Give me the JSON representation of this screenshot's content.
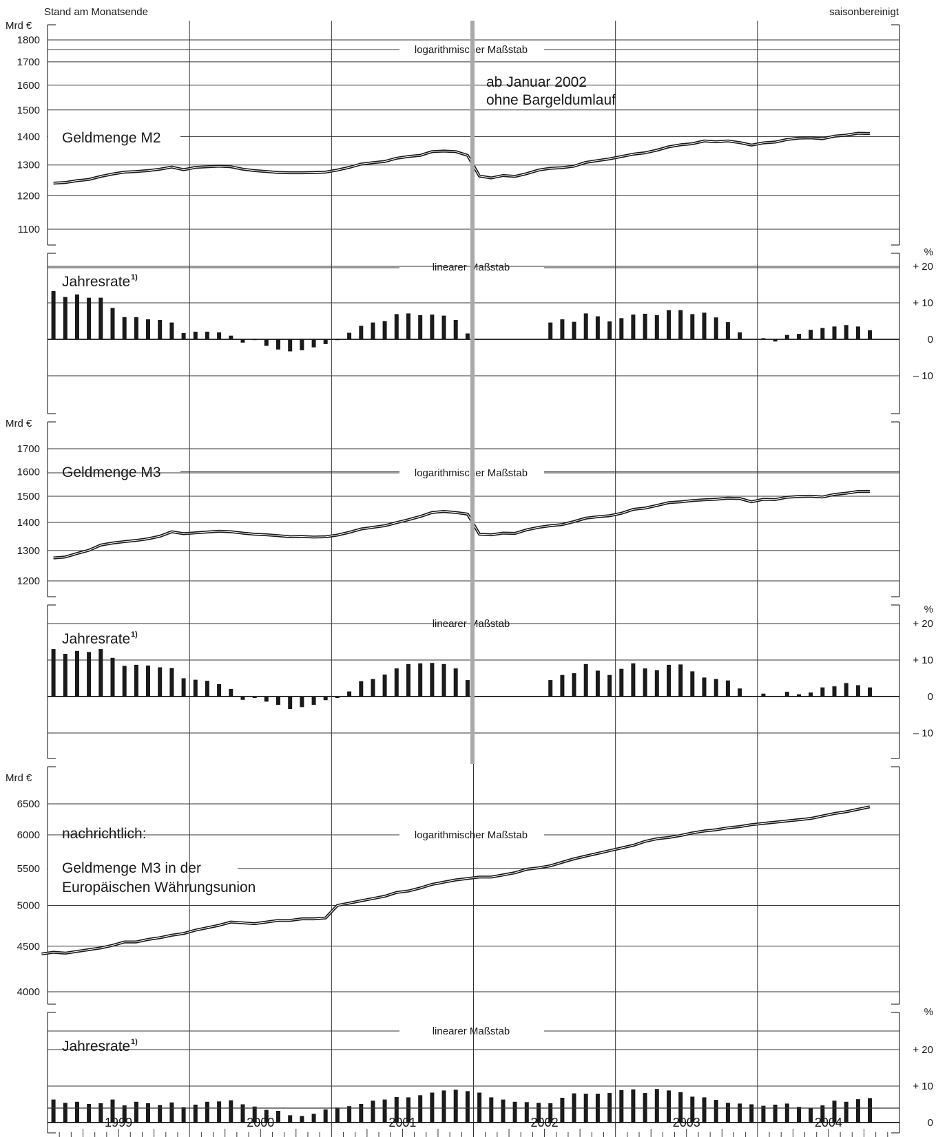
{
  "header": {
    "left": "Stand am Monatsende",
    "right": "saisonbereinigt"
  },
  "note": {
    "line1": "ab Januar 2002",
    "line2": "ohne Bargeldumlauf"
  },
  "years": [
    "1999",
    "2000",
    "2001",
    "2002",
    "2003",
    "2004"
  ],
  "chart_data": [
    {
      "type": "line",
      "title": "Geldmenge M2",
      "unit": "Mrd €",
      "scale_label": "logarithmischer Maßstab",
      "y_scale": "log",
      "ylim": [
        1050,
        1900
      ],
      "y_ticks": [
        1100,
        1200,
        1300,
        1400,
        1500,
        1600,
        1700,
        1800
      ],
      "x": "monthly, Jan 1999 – Nov 2004",
      "values": [
        1240,
        1242,
        1248,
        1252,
        1262,
        1270,
        1276,
        1278,
        1281,
        1286,
        1293,
        1284,
        1292,
        1294,
        1296,
        1294,
        1286,
        1281,
        1278,
        1275,
        1274,
        1274,
        1275,
        1276,
        1283,
        1292,
        1303,
        1308,
        1312,
        1323,
        1329,
        1333,
        1346,
        1348,
        1346,
        1333,
        1263,
        1257,
        1265,
        1262,
        1271,
        1283,
        1289,
        1291,
        1296,
        1309,
        1315,
        1321,
        1329,
        1337,
        1342,
        1351,
        1363,
        1370,
        1374,
        1384,
        1381,
        1384,
        1378,
        1369,
        1377,
        1380,
        1389,
        1394,
        1395,
        1392,
        1401,
        1405,
        1412,
        1411
      ]
    },
    {
      "type": "bar",
      "title": "Jahresrate",
      "footnote": "1)",
      "unit": "%",
      "scale_label": "linearer Maßstab",
      "ylim": [
        -20,
        24
      ],
      "y_ticks": [
        -10,
        0,
        10,
        20
      ],
      "y_tick_labels": [
        "– 10",
        "0",
        "+ 10",
        "+ 20"
      ],
      "x": "monthly, Jan 1999 – Nov 2004",
      "values": [
        13.2,
        11.6,
        12.3,
        11.4,
        11.4,
        8.6,
        6.1,
        6.1,
        5.5,
        5.3,
        4.6,
        1.7,
        2.1,
        2.1,
        1.9,
        1.0,
        -0.9,
        0.0,
        -1.8,
        -2.8,
        -3.3,
        -3.0,
        -2.2,
        -1.3,
        0.0,
        1.8,
        3.7,
        4.6,
        5.0,
        6.9,
        7.1,
        6.6,
        6.8,
        6.5,
        5.3,
        1.6,
        null,
        null,
        null,
        null,
        null,
        null,
        4.6,
        5.5,
        4.8,
        7.1,
        6.3,
        4.9,
        5.8,
        6.8,
        7.0,
        6.6,
        8.0,
        8.0,
        6.9,
        7.3,
        6.0,
        4.7,
        1.9,
        null,
        0.3,
        -0.6,
        1.2,
        1.5,
        2.6,
        3.1,
        3.5,
        3.9,
        3.5,
        2.5
      ]
    },
    {
      "type": "line",
      "title": "Geldmenge M3",
      "unit": "Mrd €",
      "scale_label": "logarithmischer Maßstab",
      "y_scale": "log",
      "ylim": [
        1160,
        1820
      ],
      "y_ticks": [
        1200,
        1300,
        1400,
        1500,
        1600,
        1700
      ],
      "x": "monthly, Jan 1999 – Nov 2004",
      "values": [
        1275,
        1278,
        1290,
        1301,
        1319,
        1326,
        1331,
        1335,
        1341,
        1350,
        1366,
        1359,
        1362,
        1365,
        1368,
        1366,
        1361,
        1357,
        1355,
        1352,
        1348,
        1349,
        1347,
        1348,
        1354,
        1364,
        1376,
        1382,
        1388,
        1399,
        1410,
        1422,
        1437,
        1441,
        1437,
        1431,
        1357,
        1355,
        1361,
        1360,
        1373,
        1382,
        1388,
        1392,
        1403,
        1416,
        1421,
        1425,
        1434,
        1449,
        1454,
        1464,
        1475,
        1478,
        1483,
        1486,
        1488,
        1492,
        1491,
        1478,
        1488,
        1487,
        1496,
        1499,
        1500,
        1497,
        1507,
        1512,
        1519,
        1519
      ]
    },
    {
      "type": "bar",
      "title": "Jahresrate",
      "footnote": "1)",
      "unit": "%",
      "scale_label": "linearer Maßstab",
      "ylim": [
        -20,
        24
      ],
      "y_ticks": [
        -10,
        0,
        10,
        20
      ],
      "y_tick_labels": [
        "– 10",
        "0",
        "+ 10",
        "+ 20"
      ],
      "x": "monthly, Jan 1999 – Nov 2004",
      "values": [
        13.0,
        11.7,
        12.5,
        12.2,
        13.0,
        10.6,
        8.4,
        8.7,
        8.5,
        8.0,
        7.8,
        5.0,
        4.6,
        4.3,
        3.4,
        2.1,
        -0.9,
        -0.4,
        -1.4,
        -2.3,
        -3.4,
        -2.9,
        -2.3,
        -1.0,
        -0.4,
        1.4,
        4.2,
        4.8,
        6.0,
        7.7,
        8.9,
        9.1,
        9.2,
        8.9,
        7.7,
        4.5,
        null,
        null,
        null,
        null,
        null,
        null,
        4.5,
        5.9,
        6.4,
        8.9,
        7.1,
        5.9,
        7.6,
        9.1,
        7.7,
        7.2,
        8.7,
        8.8,
        6.9,
        5.2,
        4.8,
        4.4,
        2.2,
        null,
        0.8,
        null,
        1.3,
        0.6,
        1.1,
        2.5,
        2.8,
        3.7,
        3.1,
        2.5
      ]
    },
    {
      "type": "line",
      "title": "nachrichtlich: Geldmenge M3 in der Europäischen Währungsunion",
      "unit": "Mrd €",
      "scale_label": "logarithmischer Maßstab",
      "y_scale": "log",
      "ylim": [
        3850,
        6950
      ],
      "y_ticks": [
        4000,
        4500,
        5000,
        5500,
        6000,
        6500
      ],
      "x": "monthly, Dec 1998 – Nov 2004",
      "values": [
        4410,
        4430,
        4420,
        4440,
        4460,
        4480,
        4510,
        4550,
        4550,
        4580,
        4600,
        4630,
        4650,
        4690,
        4720,
        4750,
        4790,
        4780,
        4770,
        4790,
        4810,
        4810,
        4830,
        4830,
        4840,
        5000,
        5030,
        5060,
        5090,
        5120,
        5170,
        5190,
        5230,
        5280,
        5310,
        5340,
        5360,
        5380,
        5380,
        5410,
        5440,
        5490,
        5510,
        5540,
        5590,
        5640,
        5680,
        5720,
        5760,
        5800,
        5840,
        5900,
        5940,
        5960,
        5990,
        6030,
        6060,
        6080,
        6110,
        6130,
        6160,
        6180,
        6200,
        6220,
        6240,
        6260,
        6300,
        6340,
        6370,
        6410,
        6450
      ]
    },
    {
      "type": "bar",
      "title": "Jahresrate",
      "footnote": "1)",
      "unit": "%",
      "scale_label": "linearer Maßstab",
      "ylim": [
        -3,
        24
      ],
      "y_ticks": [
        0,
        10,
        20
      ],
      "y_tick_labels": [
        "0",
        "+ 10",
        "+ 20"
      ],
      "x": "monthly, Jan 1999 – Nov 2004",
      "values": [
        6.3,
        5.4,
        5.7,
        5.1,
        5.3,
        6.3,
        4.7,
        5.7,
        5.3,
        4.8,
        5.5,
        4.2,
        4.9,
        5.7,
        5.8,
        6.1,
        5.0,
        4.4,
        3.5,
        3.2,
        2.0,
        1.8,
        2.4,
        3.6,
        4.1,
        4.5,
        5.1,
        6.0,
        6.3,
        7.0,
        6.9,
        7.5,
        8.2,
        8.8,
        9.0,
        8.6,
        8.2,
        6.9,
        6.3,
        5.7,
        5.6,
        5.4,
        5.3,
        6.8,
        8.0,
        7.9,
        7.9,
        8.1,
        8.9,
        9.1,
        8.1,
        9.2,
        8.8,
        8.3,
        7.1,
        6.9,
        6.2,
        5.4,
        5.2,
        5.0,
        4.6,
        4.9,
        5.2,
        4.3,
        4.0,
        4.7,
        6.0,
        5.7,
        6.4,
        6.7
      ]
    }
  ]
}
